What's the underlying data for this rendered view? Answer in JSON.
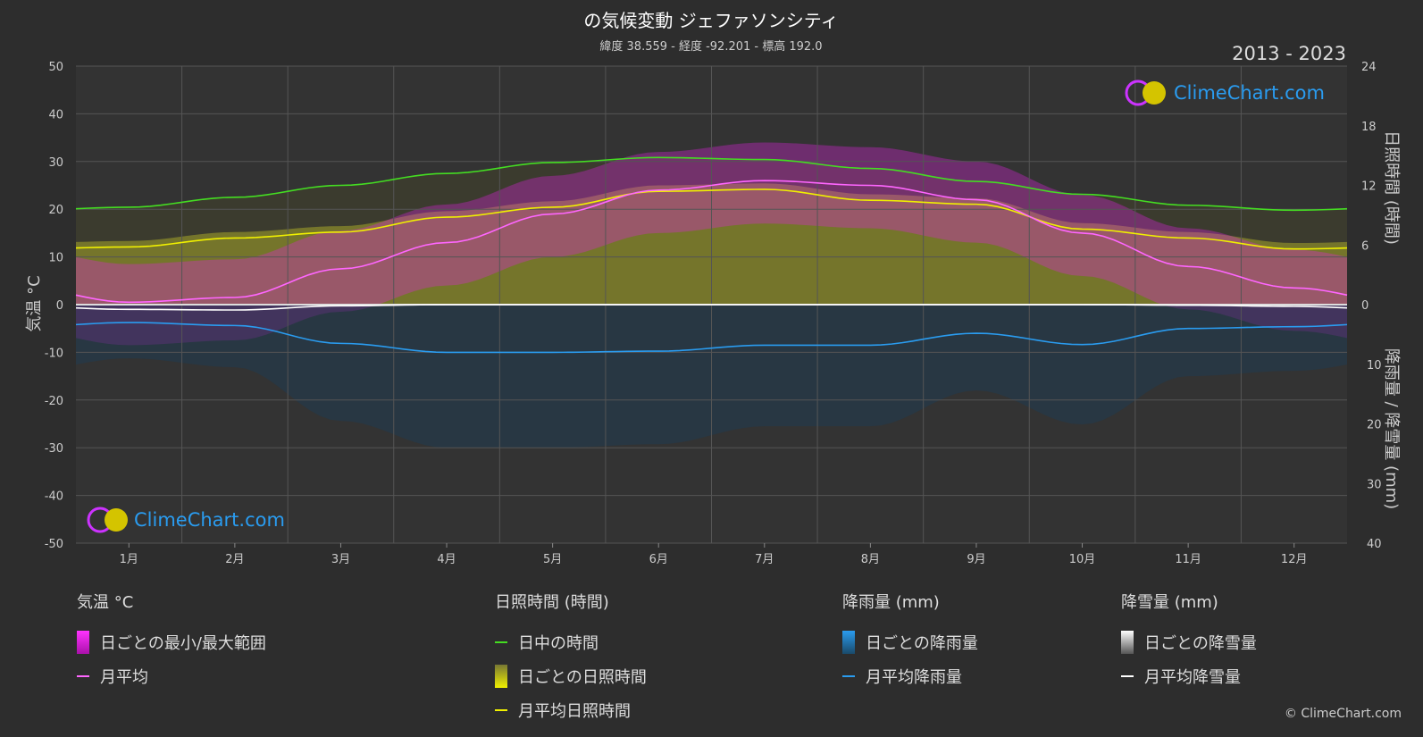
{
  "header": {
    "title": "の気候変動 ジェファソンシティ",
    "subtitle": "緯度 38.559 - 経度 -92.201 - 標高 192.0",
    "period": "2013 - 2023"
  },
  "axes": {
    "left_label": "気温 °C",
    "right_top_label": "日照時間 (時間)",
    "right_bottom_label": "降雨量 / 降雪量 (mm)",
    "left_ticks": [
      "50",
      "40",
      "30",
      "20",
      "10",
      "0",
      "-10",
      "-20",
      "-30",
      "-40",
      "-50"
    ],
    "right_top_ticks": [
      "24",
      "18",
      "12",
      "6",
      "0"
    ],
    "right_bottom_ticks": [
      "10",
      "20",
      "30",
      "40"
    ],
    "months": [
      "1月",
      "2月",
      "3月",
      "4月",
      "5月",
      "6月",
      "7月",
      "8月",
      "9月",
      "10月",
      "11月",
      "12月"
    ]
  },
  "brand": {
    "name": "ClimeChart.com",
    "copyright": "© ClimeChart.com"
  },
  "legend": {
    "temp": {
      "head": "気温 °C",
      "range": "日ごとの最小/最大範囲",
      "avg": "月平均"
    },
    "sun": {
      "head": "日照時間 (時間)",
      "daylight": "日中の時間",
      "daily": "日ごとの日照時間",
      "avg": "月平均日照時間"
    },
    "rain": {
      "head": "降雨量 (mm)",
      "daily": "日ごとの降雨量",
      "avg": "月平均降雨量"
    },
    "snow": {
      "head": "降雪量 (mm)",
      "daily": "日ごとの降雪量",
      "avg": "月平均降雪量"
    }
  },
  "colors": {
    "daylight": "#44dd22",
    "sunshine_avg": "#f0f000",
    "temp_avg": "#ff66ff",
    "rain_avg": "#2a9cf0",
    "snow_avg": "#ffffff",
    "temp_range": "#dd22dd",
    "sunshine_fill": "#a5a52a"
  },
  "chart_data": {
    "type": "line",
    "categories": [
      "1月",
      "2月",
      "3月",
      "4月",
      "5月",
      "6月",
      "7月",
      "8月",
      "9月",
      "10月",
      "11月",
      "12月"
    ],
    "temp_ylim": [
      -50,
      50
    ],
    "sun_ylim": [
      0,
      24
    ],
    "precip_ylim": [
      0,
      40
    ],
    "series": [
      {
        "name": "日中の時間",
        "axis": "sun",
        "values": [
          9.8,
          10.8,
          12.0,
          13.2,
          14.3,
          14.8,
          14.6,
          13.7,
          12.4,
          11.1,
          10.0,
          9.5
        ]
      },
      {
        "name": "月平均日照時間",
        "axis": "sun",
        "values": [
          5.8,
          6.7,
          7.3,
          8.8,
          9.8,
          11.4,
          11.6,
          10.5,
          10.1,
          7.6,
          6.7,
          5.6
        ]
      },
      {
        "name": "月平均",
        "axis": "temp",
        "values": [
          0.5,
          1.5,
          7.5,
          13,
          19,
          24,
          26,
          25,
          22,
          15,
          8,
          3.5
        ]
      },
      {
        "name": "月平均降雨量",
        "axis": "precip",
        "values": [
          3.0,
          3.5,
          6.5,
          8.0,
          8.0,
          7.8,
          6.8,
          6.8,
          4.8,
          6.7,
          4.0,
          3.7
        ]
      },
      {
        "name": "月平均降雪量",
        "axis": "precip",
        "values": [
          0.8,
          0.9,
          0.2,
          0,
          0,
          0,
          0,
          0,
          0,
          0,
          0.1,
          0.3
        ]
      }
    ]
  }
}
